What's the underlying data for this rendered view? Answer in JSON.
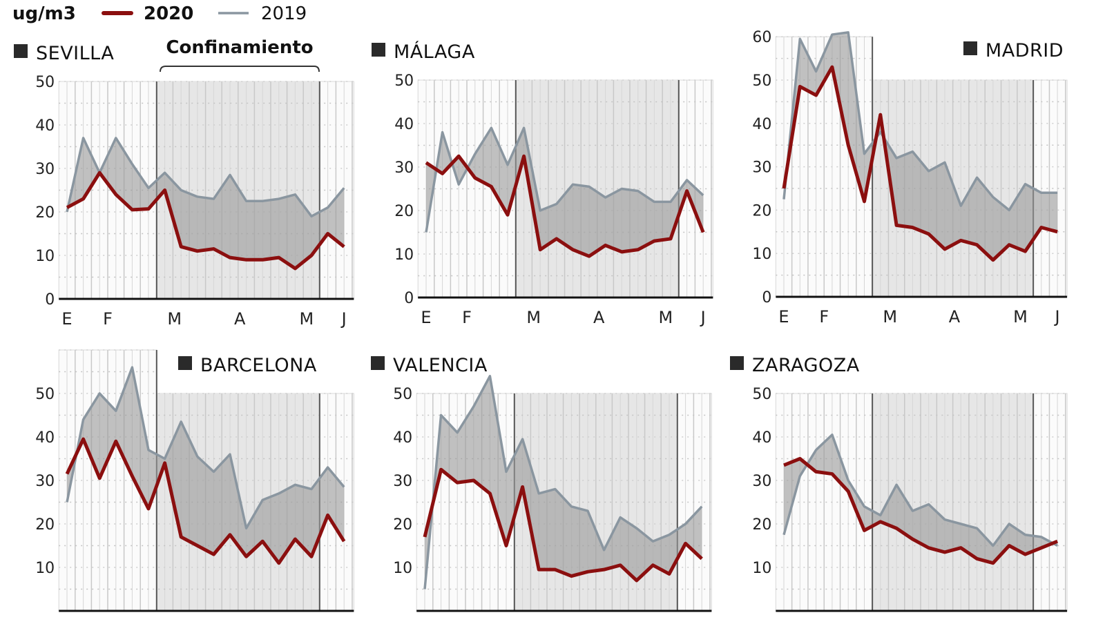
{
  "legend": {
    "unit": "ug/m3",
    "series": [
      {
        "name": "2020",
        "color": "#8b0f0f"
      },
      {
        "name": "2019",
        "color": "#8a96a0"
      }
    ]
  },
  "annotation": {
    "lockdown_label": "Confinamiento"
  },
  "colors": {
    "fill_between": "#9a9a9a",
    "lockdown_band": "#e6e6e6",
    "line_2020": "#8b0f0f",
    "line_2019": "#8a96a0"
  },
  "chart_data": [
    {
      "type": "line",
      "title": "SEVILLA",
      "ylim": [
        0,
        50
      ],
      "yticks": [
        "0",
        "10",
        "20",
        "30",
        "40",
        "50"
      ],
      "months": [
        "E",
        "F",
        "M",
        "A",
        "M",
        "J"
      ],
      "grid": true,
      "series": [
        {
          "name": "2020",
          "values": [
            21,
            23,
            29,
            24,
            20.5,
            20.7,
            25,
            12,
            11,
            11.5,
            9.5,
            9,
            9,
            9.5,
            7,
            10,
            15,
            12
          ]
        },
        {
          "name": "2019",
          "values": [
            20,
            37,
            29,
            37,
            31,
            25.5,
            29,
            25,
            23.5,
            23,
            28.5,
            22.5,
            22.5,
            23,
            24,
            19,
            21,
            25.5
          ]
        }
      ]
    },
    {
      "type": "line",
      "title": "MÁLAGA",
      "ylim": [
        0,
        50
      ],
      "yticks": [
        "0",
        "10",
        "20",
        "30",
        "40",
        "50"
      ],
      "months": [
        "E",
        "F",
        "M",
        "A",
        "M",
        "J"
      ],
      "grid": true,
      "series": [
        {
          "name": "2020",
          "values": [
            31,
            28.5,
            32.5,
            27.5,
            25.5,
            19,
            32.5,
            11,
            13.5,
            11,
            9.5,
            12,
            10.5,
            11,
            13,
            13.5,
            24.5,
            15
          ]
        },
        {
          "name": "2019",
          "values": [
            15,
            38,
            26,
            33,
            39,
            30.5,
            39,
            20,
            21.5,
            26,
            25.5,
            23,
            25,
            24.5,
            22,
            22,
            27,
            23.5
          ]
        }
      ]
    },
    {
      "type": "line",
      "title": "MADRID",
      "ylim": [
        0,
        60
      ],
      "yticks": [
        "0",
        "10",
        "20",
        "30",
        "40",
        "50",
        "60"
      ],
      "months": [
        "E",
        "F",
        "M",
        "A",
        "M",
        "J"
      ],
      "grid": true,
      "series": [
        {
          "name": "2020",
          "values": [
            25,
            48.5,
            46.5,
            53,
            35,
            22,
            42,
            16.5,
            16,
            14.5,
            11,
            13,
            12,
            8.5,
            12,
            10.5,
            16,
            15
          ]
        },
        {
          "name": "2019",
          "values": [
            22.5,
            59.5,
            52,
            60.5,
            61,
            33,
            38,
            32,
            33.5,
            29,
            31,
            21,
            27.5,
            23,
            20,
            26,
            24,
            24
          ]
        }
      ]
    },
    {
      "type": "line",
      "title": "BARCELONA",
      "ylim": [
        0,
        57
      ],
      "yticks": [
        "10",
        "20",
        "30",
        "40",
        "50"
      ],
      "months": [],
      "grid": true,
      "series": [
        {
          "name": "2020",
          "values": [
            31.5,
            39.5,
            30.5,
            39,
            31,
            23.5,
            34,
            17,
            15,
            13,
            17.5,
            12.5,
            16,
            11,
            16.5,
            12.5,
            22,
            16
          ]
        },
        {
          "name": "2019",
          "values": [
            25,
            44,
            50,
            46,
            56,
            37,
            35,
            43.5,
            35.5,
            32,
            36,
            19,
            25.5,
            27,
            29,
            28,
            33,
            28.5
          ]
        }
      ]
    },
    {
      "type": "line",
      "title": "VALENCIA",
      "ylim": [
        0,
        50
      ],
      "yticks": [
        "10",
        "20",
        "30",
        "40",
        "50"
      ],
      "months": [],
      "grid": true,
      "series": [
        {
          "name": "2020",
          "values": [
            17,
            32.5,
            29.5,
            30,
            27,
            15,
            28.5,
            9.5,
            9.5,
            8,
            9,
            9.5,
            10.5,
            7,
            10.5,
            8.5,
            15.5,
            12
          ]
        },
        {
          "name": "2019",
          "values": [
            5,
            45,
            41,
            47,
            54,
            32,
            39.5,
            27,
            28,
            24,
            23,
            14,
            21.5,
            19,
            16,
            17.5,
            20,
            24
          ]
        }
      ]
    },
    {
      "type": "line",
      "title": "ZARAGOZA",
      "ylim": [
        0,
        50
      ],
      "yticks": [
        "10",
        "20",
        "30",
        "40",
        "50"
      ],
      "months": [],
      "grid": true,
      "series": [
        {
          "name": "2020",
          "values": [
            33.5,
            35,
            32,
            31.5,
            27.5,
            18.5,
            20.5,
            19,
            16.5,
            14.5,
            13.5,
            14.5,
            12,
            11,
            15,
            13,
            14.5,
            16
          ]
        },
        {
          "name": "2019",
          "values": [
            17.5,
            31,
            37,
            40.5,
            30,
            24,
            22,
            29,
            23,
            24.5,
            21,
            20,
            19,
            15,
            20,
            17.5,
            17,
            15
          ]
        }
      ]
    }
  ]
}
